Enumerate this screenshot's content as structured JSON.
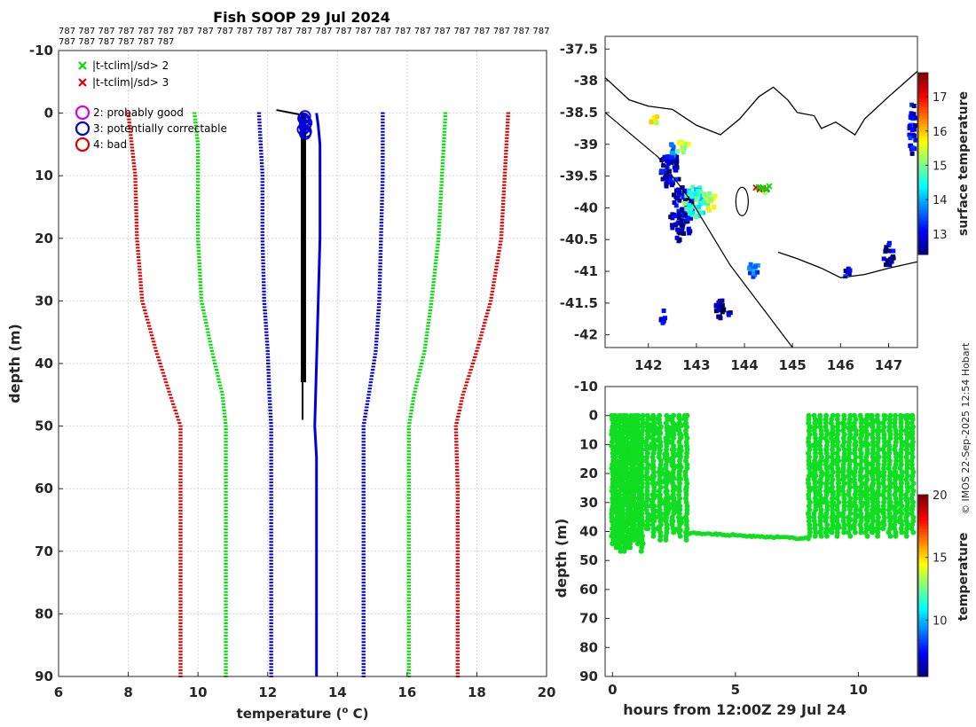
{
  "figure": {
    "title": "Fish SOOP 29 Jul 2024",
    "platform_ids_line1": "787 787 787 787 787 787 787 787 787 787 787 787 787 787 787 787 787 787 787 787 787 787 787 787 787",
    "platform_ids_line2": "787 787 787 787 787 787",
    "credit": "© IMOS 22-Sep-2025 12:54 Hobart"
  },
  "colors": {
    "green": "#00dd00",
    "red": "#e00000",
    "blue": "#0000dd",
    "black": "#000000",
    "magenta": "#dd00dd",
    "scatter_green": "#11dd22",
    "land": "#000000"
  },
  "chart_data": [
    {
      "type": "line",
      "id": "profile",
      "xlabel": "temperature (",
      "xlabel_sup": "o",
      "xlabel_tail": " C)",
      "ylabel": "depth (m)",
      "xlim": [
        6,
        20
      ],
      "ylim": [
        -10,
        90
      ],
      "y_reversed": true,
      "xticks": [
        6,
        8,
        10,
        12,
        14,
        16,
        18,
        20
      ],
      "yticks": [
        -10,
        0,
        10,
        20,
        30,
        40,
        50,
        60,
        70,
        80,
        90
      ],
      "grid": true,
      "legend": {
        "position": "top-left",
        "flag_entries": [
          {
            "marker": "x",
            "color": "green",
            "label": "|t-tclim|/sd> 2"
          },
          {
            "marker": "x",
            "color": "red",
            "label": "|t-tclim|/sd> 3"
          }
        ],
        "qc_entries": [
          {
            "marker": "o",
            "color": "magenta",
            "label": "2: probably good"
          },
          {
            "marker": "o",
            "color": "blue",
            "label": "3: potentially correctable"
          },
          {
            "marker": "o",
            "color": "red",
            "label": "4: bad"
          }
        ]
      },
      "series": [
        {
          "name": "clim -3sd",
          "color": "red",
          "points": [
            [
              8.0,
              0
            ],
            [
              8.1,
              5
            ],
            [
              8.2,
              10
            ],
            [
              8.25,
              20
            ],
            [
              8.4,
              30
            ],
            [
              8.8,
              38
            ],
            [
              9.2,
              45
            ],
            [
              9.5,
              50
            ],
            [
              9.5,
              60
            ],
            [
              9.5,
              90
            ]
          ]
        },
        {
          "name": "clim -2sd",
          "color": "green",
          "points": [
            [
              9.9,
              0
            ],
            [
              10.0,
              5
            ],
            [
              10.0,
              10
            ],
            [
              10.0,
              20
            ],
            [
              10.1,
              30
            ],
            [
              10.4,
              38
            ],
            [
              10.7,
              45
            ],
            [
              10.8,
              50
            ],
            [
              10.8,
              60
            ],
            [
              10.8,
              90
            ]
          ]
        },
        {
          "name": "clim -1sd",
          "color": "blue",
          "points": [
            [
              11.75,
              0
            ],
            [
              11.8,
              5
            ],
            [
              11.85,
              10
            ],
            [
              11.85,
              20
            ],
            [
              11.9,
              30
            ],
            [
              12.0,
              38
            ],
            [
              12.05,
              45
            ],
            [
              12.1,
              50
            ],
            [
              12.1,
              60
            ],
            [
              12.1,
              90
            ]
          ]
        },
        {
          "name": "clim +1sd",
          "color": "blue",
          "points": [
            [
              15.3,
              0
            ],
            [
              15.3,
              5
            ],
            [
              15.3,
              10
            ],
            [
              15.25,
              20
            ],
            [
              15.2,
              30
            ],
            [
              15.1,
              38
            ],
            [
              14.9,
              45
            ],
            [
              14.75,
              50
            ],
            [
              14.75,
              60
            ],
            [
              14.75,
              90
            ]
          ]
        },
        {
          "name": "clim +2sd",
          "color": "green",
          "points": [
            [
              17.1,
              0
            ],
            [
              17.05,
              5
            ],
            [
              17.0,
              10
            ],
            [
              16.9,
              20
            ],
            [
              16.7,
              30
            ],
            [
              16.5,
              38
            ],
            [
              16.2,
              45
            ],
            [
              16.05,
              50
            ],
            [
              16.05,
              60
            ],
            [
              16.05,
              90
            ]
          ]
        },
        {
          "name": "clim +3sd",
          "color": "red",
          "points": [
            [
              18.9,
              0
            ],
            [
              18.85,
              5
            ],
            [
              18.8,
              10
            ],
            [
              18.7,
              20
            ],
            [
              18.4,
              30
            ],
            [
              18.0,
              38
            ],
            [
              17.6,
              45
            ],
            [
              17.4,
              50
            ],
            [
              17.45,
              60
            ],
            [
              17.45,
              90
            ]
          ]
        },
        {
          "name": "mean profile",
          "color": "blue",
          "width": 3,
          "points": [
            [
              13.4,
              0
            ],
            [
              13.45,
              2
            ],
            [
              13.5,
              5
            ],
            [
              13.5,
              10
            ],
            [
              13.5,
              20
            ],
            [
              13.45,
              30
            ],
            [
              13.4,
              40
            ],
            [
              13.35,
              50
            ],
            [
              13.4,
              55
            ],
            [
              13.4,
              60
            ],
            [
              13.4,
              90
            ]
          ]
        }
      ],
      "observed": {
        "name": "observed profiles",
        "color": "black",
        "temperature_range": [
          12.95,
          13.1
        ],
        "depth_range": [
          0,
          49
        ],
        "surface_hook": [
          [
            12.25,
            -0.5
          ],
          [
            12.9,
            0.2
          ]
        ]
      },
      "qc_flag_points": {
        "color": "blue",
        "marker": "o",
        "temperature": 13.05,
        "depth_range": [
          0.5,
          3.5
        ]
      }
    },
    {
      "type": "heatmap",
      "id": "map",
      "xlim": [
        141.1,
        147.6
      ],
      "ylim": [
        -42.2,
        -37.3
      ],
      "xticks": [
        142,
        143,
        144,
        145,
        146,
        147
      ],
      "yticks": [
        -37.5,
        -38,
        -38.5,
        -39,
        -39.5,
        -40,
        -40.5,
        -41,
        -41.5,
        -42
      ],
      "ytick_labels": [
        "-37.5",
        "-38",
        "-38.5",
        "-39",
        "-39.5",
        "-40",
        "-40.5",
        "-41",
        "-41.5",
        "-42"
      ],
      "colorbar": {
        "label": "surface temperature",
        "range": [
          12.4,
          17.7
        ],
        "ticks": [
          13,
          14,
          15,
          16,
          17
        ]
      },
      "sst_patches": [
        {
          "lon": 142.45,
          "lat": -39.4,
          "rx": 0.22,
          "ry": 0.3,
          "value": 12.8
        },
        {
          "lon": 142.5,
          "lat": -39.1,
          "rx": 0.1,
          "ry": 0.12,
          "value": 13.5
        },
        {
          "lon": 142.7,
          "lat": -40.1,
          "rx": 0.25,
          "ry": 0.45,
          "value": 12.7
        },
        {
          "lon": 143.0,
          "lat": -39.9,
          "rx": 0.25,
          "ry": 0.25,
          "value": 14.6
        },
        {
          "lon": 143.3,
          "lat": -39.9,
          "rx": 0.12,
          "ry": 0.15,
          "value": 15.3
        },
        {
          "lon": 142.1,
          "lat": -38.6,
          "rx": 0.1,
          "ry": 0.1,
          "value": 15.6
        },
        {
          "lon": 142.7,
          "lat": -39.05,
          "rx": 0.18,
          "ry": 0.1,
          "value": 15.2
        },
        {
          "lon": 144.2,
          "lat": -40.95,
          "rx": 0.12,
          "ry": 0.15,
          "value": 13.8
        },
        {
          "lon": 143.55,
          "lat": -41.6,
          "rx": 0.18,
          "ry": 0.15,
          "value": 12.6
        },
        {
          "lon": 142.3,
          "lat": -41.7,
          "rx": 0.06,
          "ry": 0.15,
          "value": 12.6
        },
        {
          "lon": 147.0,
          "lat": -40.75,
          "rx": 0.12,
          "ry": 0.2,
          "value": 12.7
        },
        {
          "lon": 146.1,
          "lat": -41.0,
          "rx": 0.1,
          "ry": 0.08,
          "value": 13.0
        },
        {
          "lon": 147.5,
          "lat": -38.8,
          "rx": 0.08,
          "ry": 0.45,
          "value": 12.9
        },
        {
          "lon": 144.4,
          "lat": -39.7,
          "rx": 0.1,
          "ry": 0.06,
          "value": 15.0
        }
      ],
      "track_flags": {
        "lon": 144.35,
        "lat": -39.68,
        "colors": [
          "red",
          "green"
        ]
      }
    },
    {
      "type": "scatter",
      "id": "time-depth",
      "xlabel": "hours from 12:00Z 29 Jul 24",
      "ylabel": "depth (m)",
      "xlim": [
        -0.3,
        12.4
      ],
      "ylim": [
        -10,
        90
      ],
      "y_reversed": true,
      "xticks": [
        0,
        5,
        10
      ],
      "yticks": [
        -10,
        0,
        10,
        20,
        30,
        40,
        50,
        60,
        70,
        80,
        90
      ],
      "grid": false,
      "colorbar": {
        "label": "temperature",
        "range": [
          5.5,
          20
        ],
        "ticks": [
          10,
          15,
          20
        ]
      },
      "marker_temperature": 13.0,
      "segments": [
        {
          "t_start": 0.0,
          "t_end": 1.2,
          "depth_max_range": [
            44,
            48
          ],
          "casts": 9
        },
        {
          "t_start": 1.4,
          "t_end": 3.0,
          "depth_max_range": [
            40,
            44
          ],
          "casts": 7
        },
        {
          "t_start": 8.0,
          "t_end": 12.2,
          "depth_max_range": [
            40,
            43
          ],
          "casts": 19
        }
      ],
      "bottom_track": {
        "t_range": [
          3.0,
          8.0
        ],
        "depth_range": [
          40.5,
          42.5
        ]
      }
    }
  ]
}
